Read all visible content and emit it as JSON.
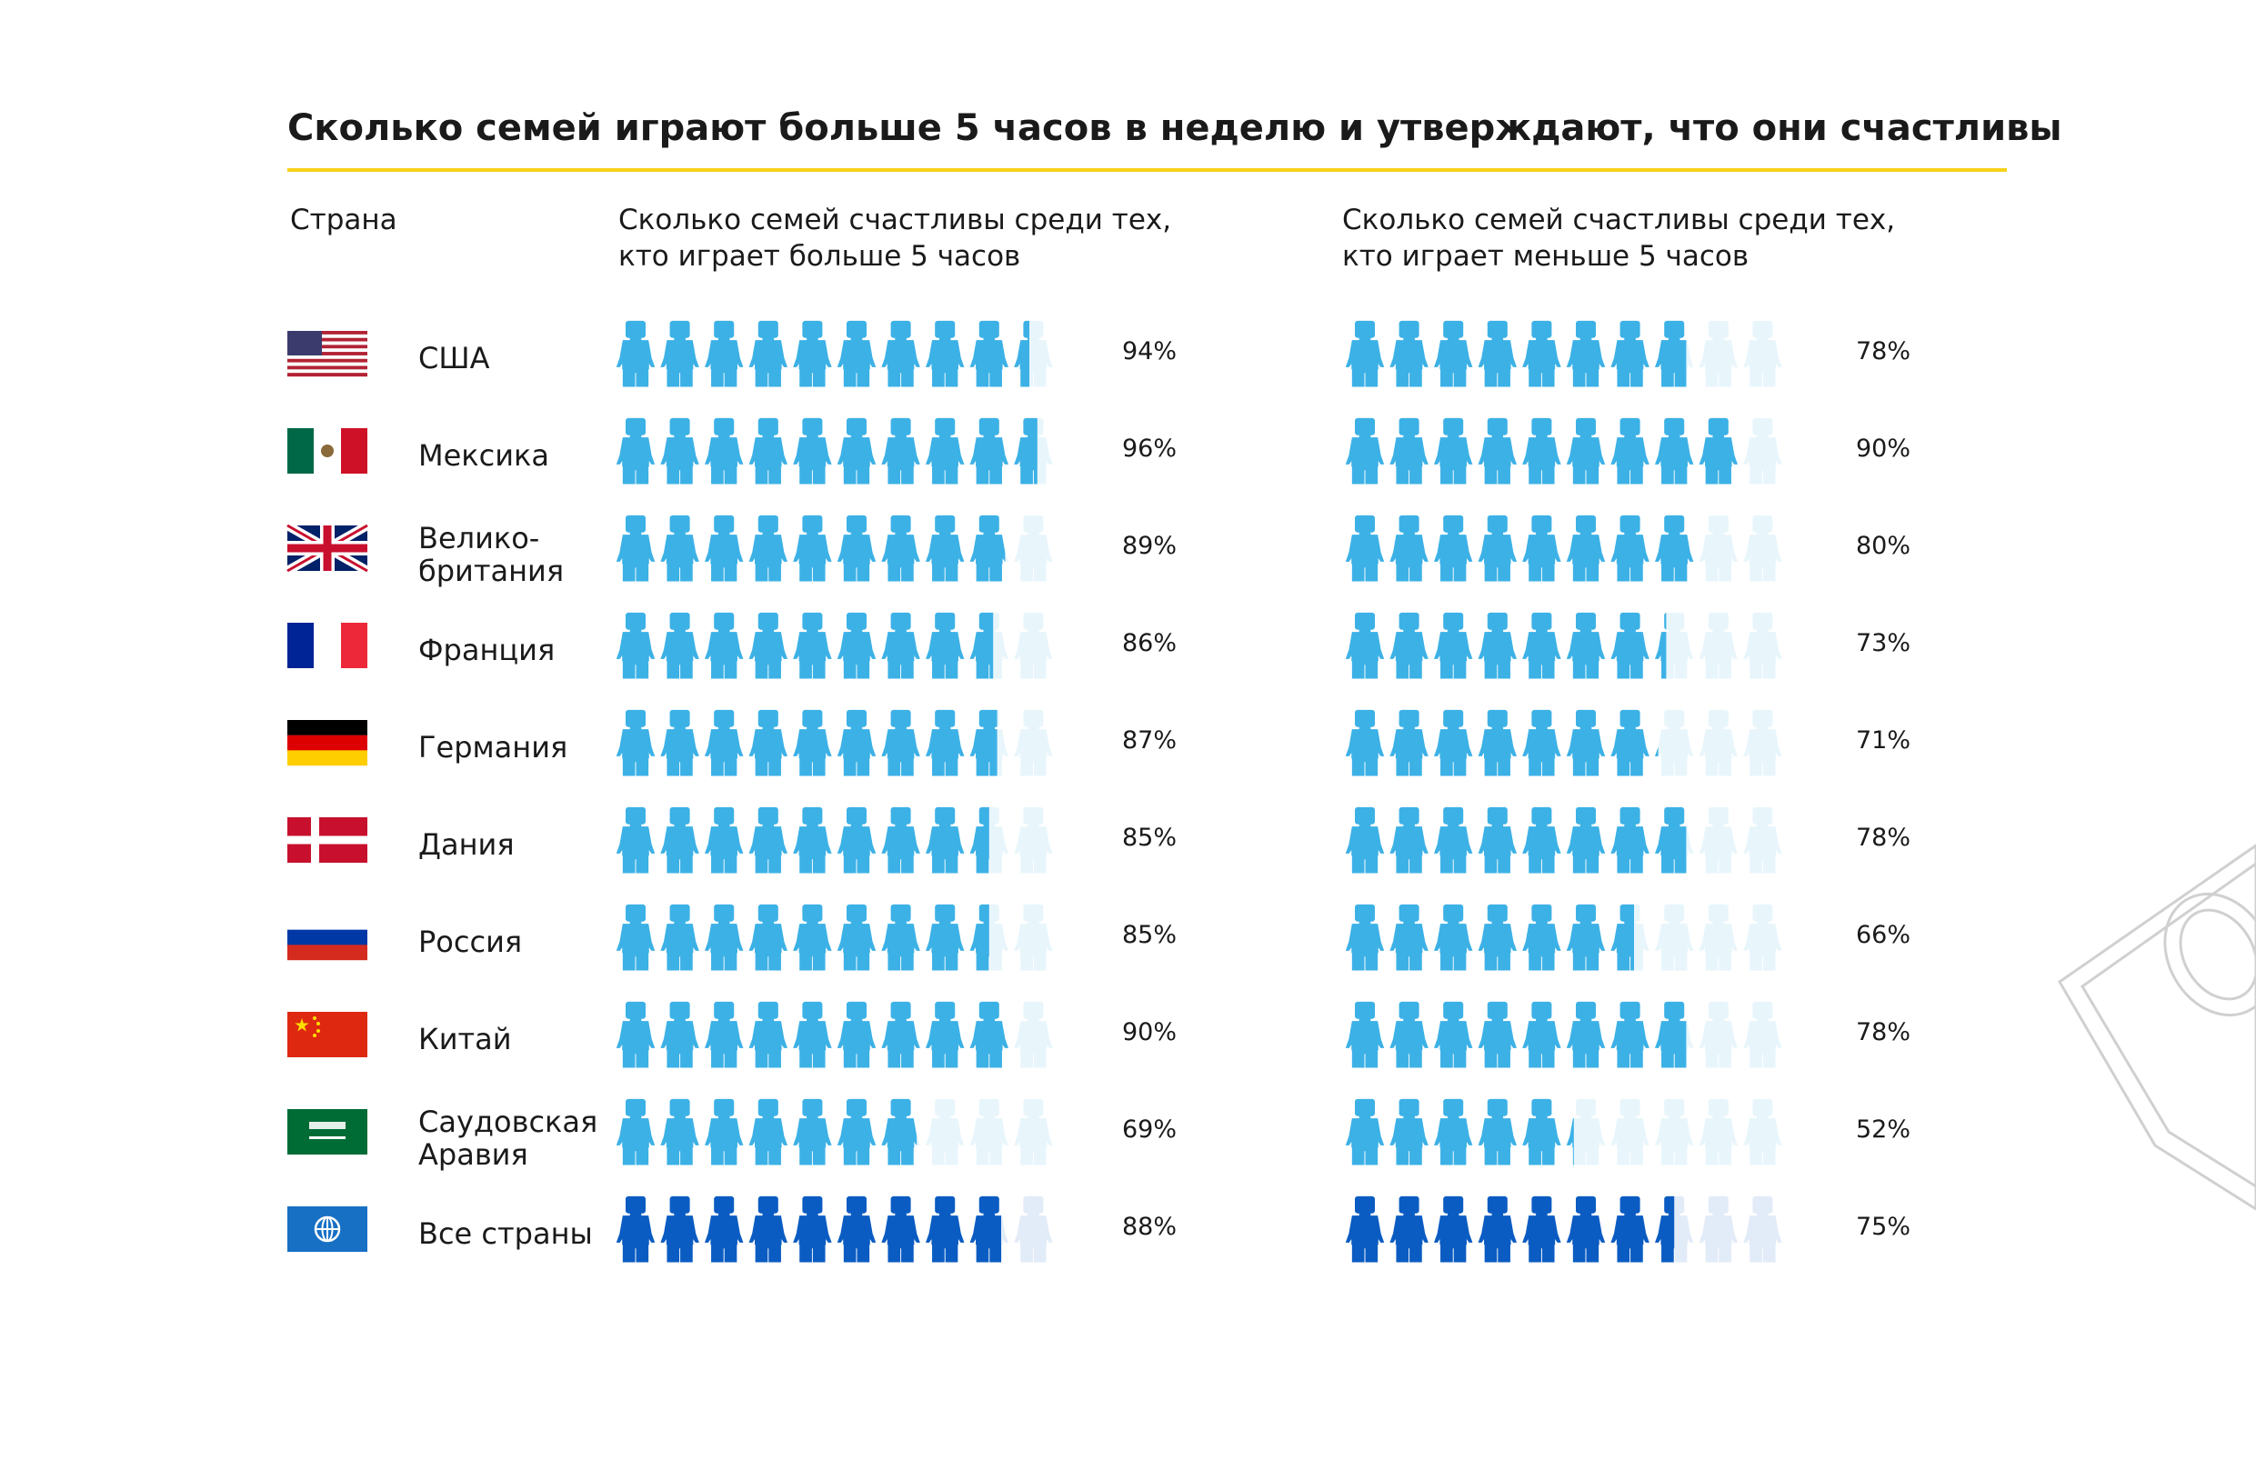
{
  "chart_data": {
    "type": "pictogram",
    "title": "Сколько семей играют больше 5 часов в неделю и утверждают, что они счастливы",
    "category_label": "Страна",
    "categories": [
      "США",
      "Мексика",
      "Велико-\nбритания",
      "Франция",
      "Германия",
      "Дания",
      "Россия",
      "Китай",
      "Саудовская\nАравия",
      "Все страны"
    ],
    "ylim": [
      0,
      100
    ],
    "series": [
      {
        "name": "Сколько семей счастливы среди тех,\nкто играет больше 5 часов",
        "color": "#3cb1e6",
        "values": [
          94,
          96,
          89,
          86,
          87,
          85,
          85,
          90,
          69,
          88
        ],
        "value_labels": [
          "94%",
          "96%",
          "89%",
          "86%",
          "87%",
          "85%",
          "85%",
          "90%",
          "69%",
          "88%"
        ]
      },
      {
        "name": "Сколько семей счастливы среди тех,\nкто играет меньше 5 часов",
        "color": "#3cb1e6",
        "values": [
          78,
          90,
          80,
          73,
          71,
          78,
          66,
          78,
          52,
          75
        ],
        "value_labels": [
          "78%",
          "90%",
          "80%",
          "73%",
          "71%",
          "78%",
          "66%",
          "78%",
          "52%",
          "75%"
        ]
      }
    ],
    "highlight_color": "#0b5cc2"
  }
}
